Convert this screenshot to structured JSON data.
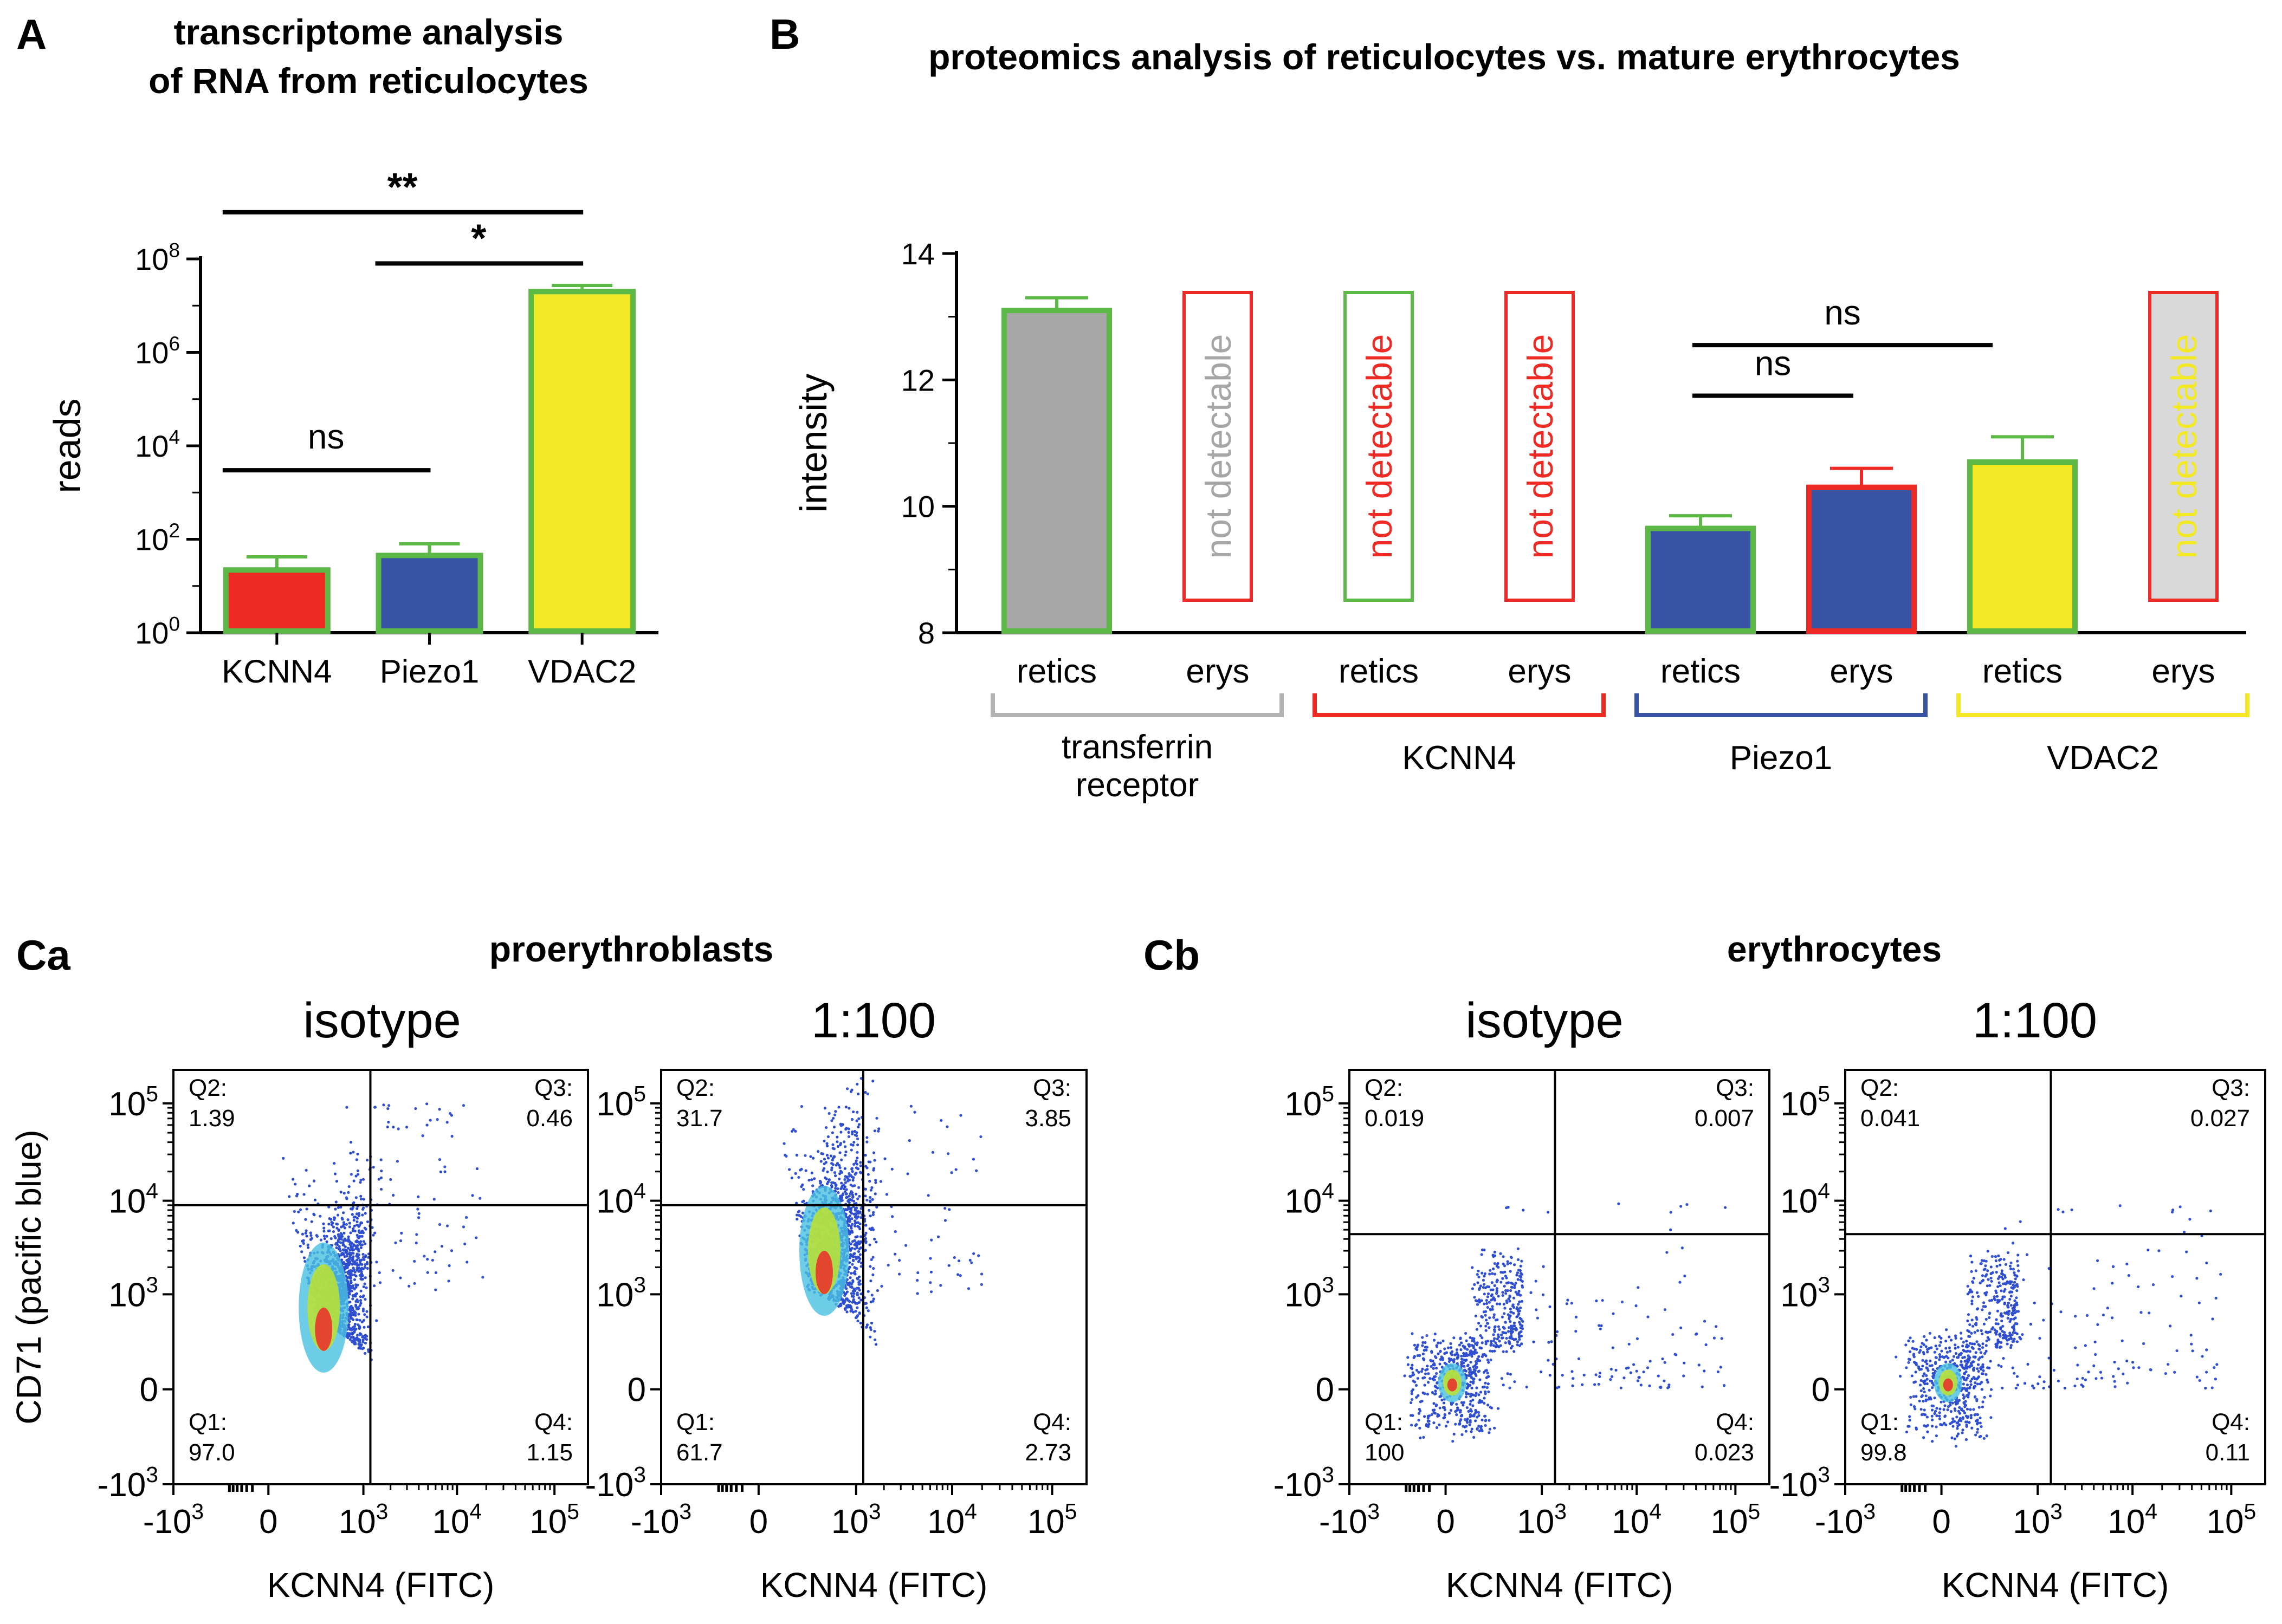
{
  "panels": {
    "A": {
      "letter": "A",
      "title_line1": "transcriptome analysis",
      "title_line2": "of RNA from reticulocytes"
    },
    "B": {
      "letter": "B",
      "title": "proteomics analysis of reticulocytes vs. mature erythrocytes"
    },
    "Ca": {
      "letter": "Ca",
      "title": "proerythroblasts"
    },
    "Cb": {
      "letter": "Cb",
      "title": "erythrocytes"
    }
  },
  "colors": {
    "red": "#ee2a24",
    "blue": "#3953a4",
    "yellow": "#f2e824",
    "gray": "#a6a6a6",
    "green_border": "#5cb946",
    "gray_bracket": "#b3b3b3",
    "red_bracket": "#ee2a24",
    "blue_bracket": "#3953a4",
    "yellow_bracket": "#f2e824",
    "nd_fill": "#d9d9d9"
  },
  "chart_data": [
    {
      "id": "A",
      "type": "bar",
      "title": "transcriptome analysis of RNA from reticulocytes",
      "ylabel": "reads",
      "yscale": "log10",
      "ylim": [
        1,
        100000000
      ],
      "yticks": [
        {
          "value": 1,
          "base": "10",
          "exp": "0"
        },
        {
          "value": 100,
          "base": "10",
          "exp": "2"
        },
        {
          "value": 10000,
          "base": "10",
          "exp": "4"
        },
        {
          "value": 1000000,
          "base": "10",
          "exp": "6"
        },
        {
          "value": 100000000,
          "base": "10",
          "exp": "8"
        }
      ],
      "categories": [
        "KCNN4",
        "Piezo1",
        "VDAC2"
      ],
      "values": [
        22,
        45,
        20000000
      ],
      "errors": [
        42,
        80,
        27000000
      ],
      "fill": [
        "#ee2a24",
        "#3953a4",
        "#f2e824"
      ],
      "stroke": [
        "#5cb946",
        "#5cb946",
        "#5cb946"
      ],
      "significance": [
        {
          "from": 0,
          "to": 1,
          "label": "ns",
          "y": 3000
        },
        {
          "from": 1,
          "to": 2,
          "label": "*",
          "y": 80000000
        },
        {
          "from": 0,
          "to": 2,
          "label": "**",
          "y": 1000000000
        }
      ]
    },
    {
      "id": "B",
      "type": "bar",
      "title": "proteomics analysis of reticulocytes vs. mature erythrocytes",
      "ylabel": "intensity",
      "ylim": [
        8,
        14
      ],
      "yticks": [
        8,
        10,
        12,
        14
      ],
      "ytick_labels": [
        "8",
        "10",
        "12",
        "14"
      ],
      "categories": [
        "retics",
        "erys",
        "retics",
        "erys",
        "retics",
        "erys",
        "retics",
        "erys"
      ],
      "values": [
        13.1,
        null,
        null,
        null,
        9.65,
        10.3,
        10.7,
        null
      ],
      "errors": [
        13.3,
        null,
        null,
        null,
        9.85,
        10.6,
        11.1,
        null
      ],
      "fill": [
        "#a6a6a6",
        null,
        null,
        null,
        "#3953a4",
        "#3953a4",
        "#f2e824",
        null
      ],
      "stroke": [
        "#5cb946",
        null,
        null,
        null,
        "#5cb946",
        "#ee2a24",
        "#5cb946",
        null
      ],
      "not_detectable": [
        {
          "index": 1,
          "label": "not detectable",
          "text_color": "#a6a6a6",
          "border": "#ee2a24",
          "fill": "#ffffff"
        },
        {
          "index": 2,
          "label": "not detectable",
          "text_color": "#ee2a24",
          "border": "#5cb946",
          "fill": "#ffffff"
        },
        {
          "index": 3,
          "label": "not detectable",
          "text_color": "#ee2a24",
          "border": "#ee2a24",
          "fill": "#ffffff"
        },
        {
          "index": 7,
          "label": "not detectable",
          "text_color": "#f2e824",
          "border": "#ee2a24",
          "fill": "#d9d9d9"
        }
      ],
      "groups": [
        {
          "lines": [
            "transferrin",
            "receptor"
          ],
          "color": "#b3b3b3",
          "from": 0,
          "to": 1
        },
        {
          "lines": [
            "KCNN4"
          ],
          "color": "#ee2a24",
          "from": 2,
          "to": 3
        },
        {
          "lines": [
            "Piezo1"
          ],
          "color": "#3953a4",
          "from": 4,
          "to": 5
        },
        {
          "lines": [
            "VDAC2"
          ],
          "color": "#f2e824",
          "from": 6,
          "to": 7
        }
      ],
      "significance": [
        {
          "from": 4,
          "to": 5,
          "label": "ns",
          "y": 11.75
        },
        {
          "from": 4,
          "to": 6,
          "label": "ns",
          "y": 12.55
        }
      ]
    },
    {
      "id": "Ca-isotype",
      "type": "scatter",
      "panel": "Ca",
      "title": "isotype",
      "xlabel": "KCNN4 (FITC)",
      "ylabel": "CD71 (pacific blue)",
      "gate_x": 1200,
      "gate_y": 9000,
      "quadrants": [
        {
          "name": "Q2:",
          "value": "1.39"
        },
        {
          "name": "Q3:",
          "value": "0.46"
        },
        {
          "name": "Q1:",
          "value": "97.0"
        },
        {
          "name": "Q4:",
          "value": "1.15"
        }
      ]
    },
    {
      "id": "Ca-1:100",
      "type": "scatter",
      "panel": "Ca",
      "title": "1:100",
      "xlabel": "KCNN4 (FITC)",
      "gate_x": 1200,
      "gate_y": 9000,
      "quadrants": [
        {
          "name": "Q2:",
          "value": "31.7"
        },
        {
          "name": "Q3:",
          "value": "3.85"
        },
        {
          "name": "Q1:",
          "value": "61.7"
        },
        {
          "name": "Q4:",
          "value": "2.73"
        }
      ]
    },
    {
      "id": "Cb-isotype",
      "type": "scatter",
      "panel": "Cb",
      "title": "isotype",
      "xlabel": "KCNN4 (FITC)",
      "gate_x": 1400,
      "gate_y": 4500,
      "quadrants": [
        {
          "name": "Q2:",
          "value": "0.019"
        },
        {
          "name": "Q3:",
          "value": "0.007"
        },
        {
          "name": "Q1:",
          "value": "100"
        },
        {
          "name": "Q4:",
          "value": "0.023"
        }
      ]
    },
    {
      "id": "Cb-1:100",
      "type": "scatter",
      "panel": "Cb",
      "title": "1:100",
      "xlabel": "KCNN4 (FITC)",
      "gate_x": 1400,
      "gate_y": 4500,
      "quadrants": [
        {
          "name": "Q2:",
          "value": "0.041"
        },
        {
          "name": "Q3:",
          "value": "0.027"
        },
        {
          "name": "Q1:",
          "value": "99.8"
        },
        {
          "name": "Q4:",
          "value": "0.11"
        }
      ]
    }
  ],
  "flow_axes": {
    "x_ticks": [
      {
        "value": -1000,
        "base": "-10",
        "exp": "3"
      },
      {
        "value": 0,
        "base": "0",
        "exp": ""
      },
      {
        "value": 1000,
        "base": "10",
        "exp": "3"
      },
      {
        "value": 10000,
        "base": "10",
        "exp": "4"
      },
      {
        "value": 100000,
        "base": "10",
        "exp": "5"
      }
    ],
    "y_ticks": [
      {
        "value": 100000,
        "base": "10",
        "exp": "5"
      },
      {
        "value": 10000,
        "base": "10",
        "exp": "4"
      },
      {
        "value": 1000,
        "base": "10",
        "exp": "3"
      },
      {
        "value": 0,
        "base": "0",
        "exp": ""
      },
      {
        "value": -1000,
        "base": "-10",
        "exp": "3"
      }
    ]
  }
}
